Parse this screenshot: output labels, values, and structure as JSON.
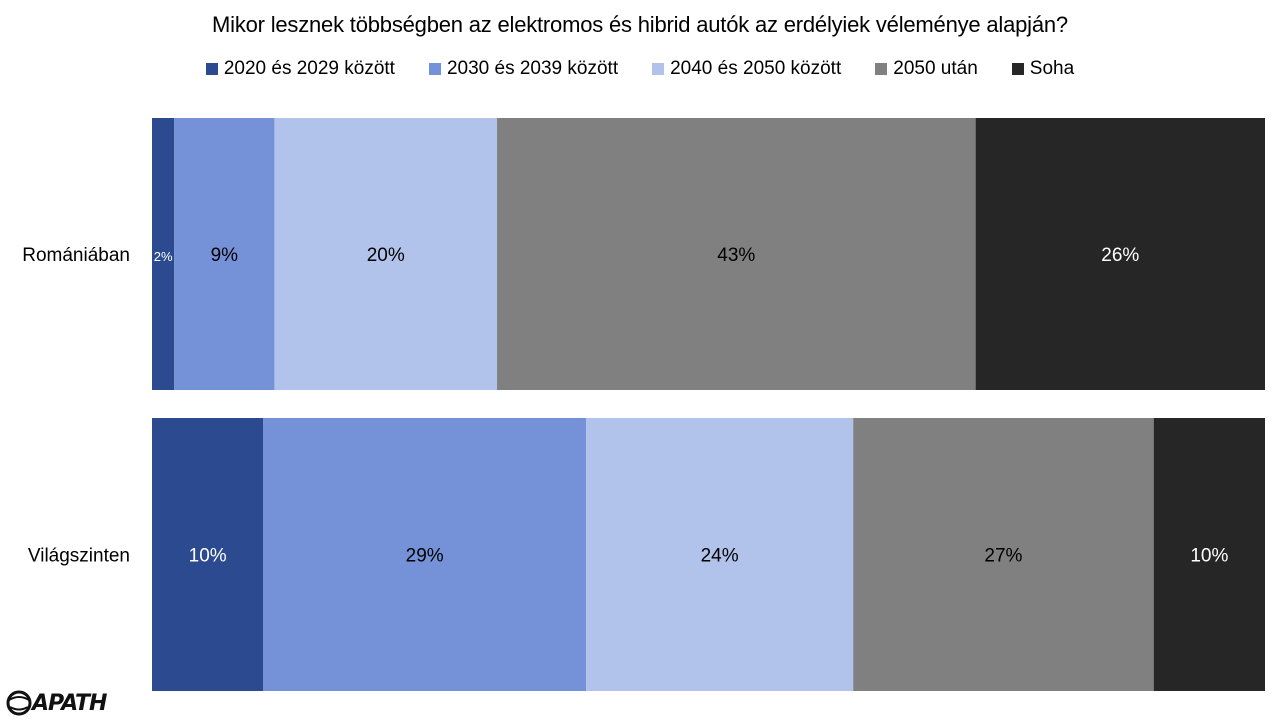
{
  "chart_data": {
    "type": "bar",
    "orientation": "horizontal",
    "stacked": true,
    "normalized": true,
    "title": "Mikor lesznek többségben az elektromos és hibrid autók az erdélyiek véleménye alapján?",
    "categories": [
      "Romániában",
      "Világszinten"
    ],
    "series": [
      {
        "name": "2020 és 2029 között",
        "color": "#2b4a8f",
        "values": [
          2,
          10
        ],
        "labels": [
          "2%",
          "10%"
        ]
      },
      {
        "name": "2030 és 2039 között",
        "color": "#7592d8",
        "values": [
          9,
          29
        ],
        "labels": [
          "9%",
          "29%"
        ]
      },
      {
        "name": "2040 és 2050 között",
        "color": "#b1c3ea",
        "values": [
          20,
          24
        ],
        "labels": [
          "20%",
          "24%"
        ]
      },
      {
        "name": "2050 után",
        "color": "#808080",
        "values": [
          43,
          27
        ],
        "labels": [
          "43%",
          "27%"
        ]
      },
      {
        "name": "Soha",
        "color": "#262626",
        "values": [
          26,
          10
        ],
        "labels": [
          "26%",
          "10%"
        ]
      }
    ],
    "label_colors": [
      "#ffffff",
      "#000000",
      "#000000",
      "#000000",
      "#ffffff"
    ],
    "legend_position": "top",
    "grid": false
  },
  "logo_text": "APATH"
}
